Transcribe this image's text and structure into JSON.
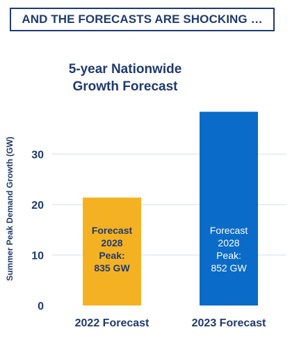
{
  "banner": {
    "text": "AND THE FORECASTS ARE SHOCKING …"
  },
  "colors": {
    "navy": "#1f3a6e",
    "bar_2022": "#f4b223",
    "bar_2023": "#0b6bc8",
    "grid": "#e3e8ef"
  },
  "chart_data": {
    "type": "bar",
    "title": "5-year Nationwide Growth Forecast",
    "ylabel": "Summer Peak Demand Growth (GW)",
    "xlabel": "",
    "ylim": [
      0,
      38.5
    ],
    "yticks": [
      0,
      10,
      20,
      30
    ],
    "grid": true,
    "categories": [
      "2022 Forecast",
      "2023 Forecast"
    ],
    "values": [
      21.4,
      38.4
    ],
    "bar_labels": [
      [
        "Forecast",
        "2028",
        "Peak:",
        "835 GW"
      ],
      [
        "Forecast",
        "2028",
        "Peak:",
        "852 GW"
      ]
    ],
    "bar_colors": [
      "#f4b223",
      "#0b6bc8"
    ],
    "bar_label_colors": [
      "#1f3a6e",
      "#ffffff"
    ]
  }
}
